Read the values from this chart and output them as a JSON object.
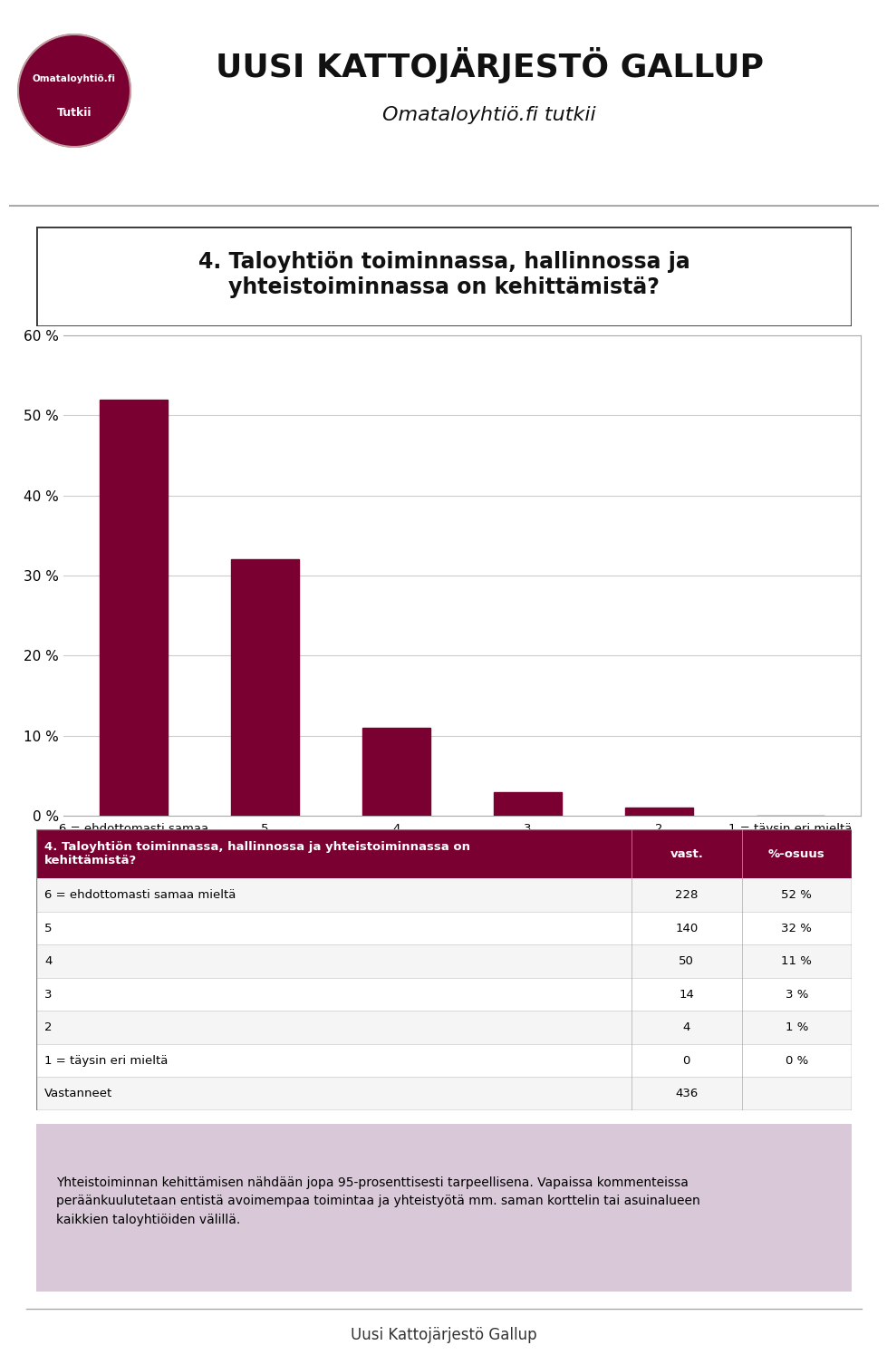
{
  "title_main": "UUSI KATTOJÄRJESTÖ GALLUP",
  "subtitle_main": "Omataloyhtiö.fi tutkii",
  "categories": [
    "6 = ehdottomasti samaa\nmieltä",
    "5",
    "4",
    "3",
    "2",
    "1 = täysin eri mieltä"
  ],
  "values": [
    52,
    32,
    11,
    3,
    1,
    0
  ],
  "bar_color": "#7B0032",
  "ylim": [
    0,
    60
  ],
  "yticks": [
    0,
    10,
    20,
    30,
    40,
    50,
    60
  ],
  "ytick_labels": [
    "0 %",
    "10 %",
    "20 %",
    "30 %",
    "40 %",
    "50 %",
    "60 %"
  ],
  "table_header_bg": "#7B0032",
  "table_header_text": "4. Taloyhtiön toiminnassa, hallinnossa ja yhteistoiminnassa on\nkehittämistä?",
  "table_col1_header": "vast.",
  "table_col2_header": "%-osuus",
  "table_rows": [
    [
      "6 = ehdottomasti samaa mieltä",
      "228",
      "52 %"
    ],
    [
      "5",
      "140",
      "32 %"
    ],
    [
      "4",
      "50",
      "11 %"
    ],
    [
      "3",
      "14",
      "3 %"
    ],
    [
      "2",
      "4",
      "1 %"
    ],
    [
      "1 = täysin eri mieltä",
      "0",
      "0 %"
    ],
    [
      "Vastanneet",
      "436",
      ""
    ]
  ],
  "comment_bg": "#D8C8D8",
  "comment_text": "Yhteistoiminnan kehittämisen nähdään jopa 95-prosenttisesti tarpeellisena. Vapaissa kommenteissa\nperäänkuulutetaan entistä avoimempaa toimintaa ja yhteistyötä mm. saman korttelin tai asuinalueen\nkaikkien taloyhtiöiden välillä.",
  "footer_text": "Uusi Kattojärjestö Gallup",
  "question_box_title": "4. Taloyhtiön toiminnassa, hallinnossa ja\nyhteistoiminnassa on kehittämistä?",
  "logo_circle_color": "#7B0032",
  "logo_text1": "Omataloyhtiö.fi",
  "logo_text2": "Tutkii"
}
